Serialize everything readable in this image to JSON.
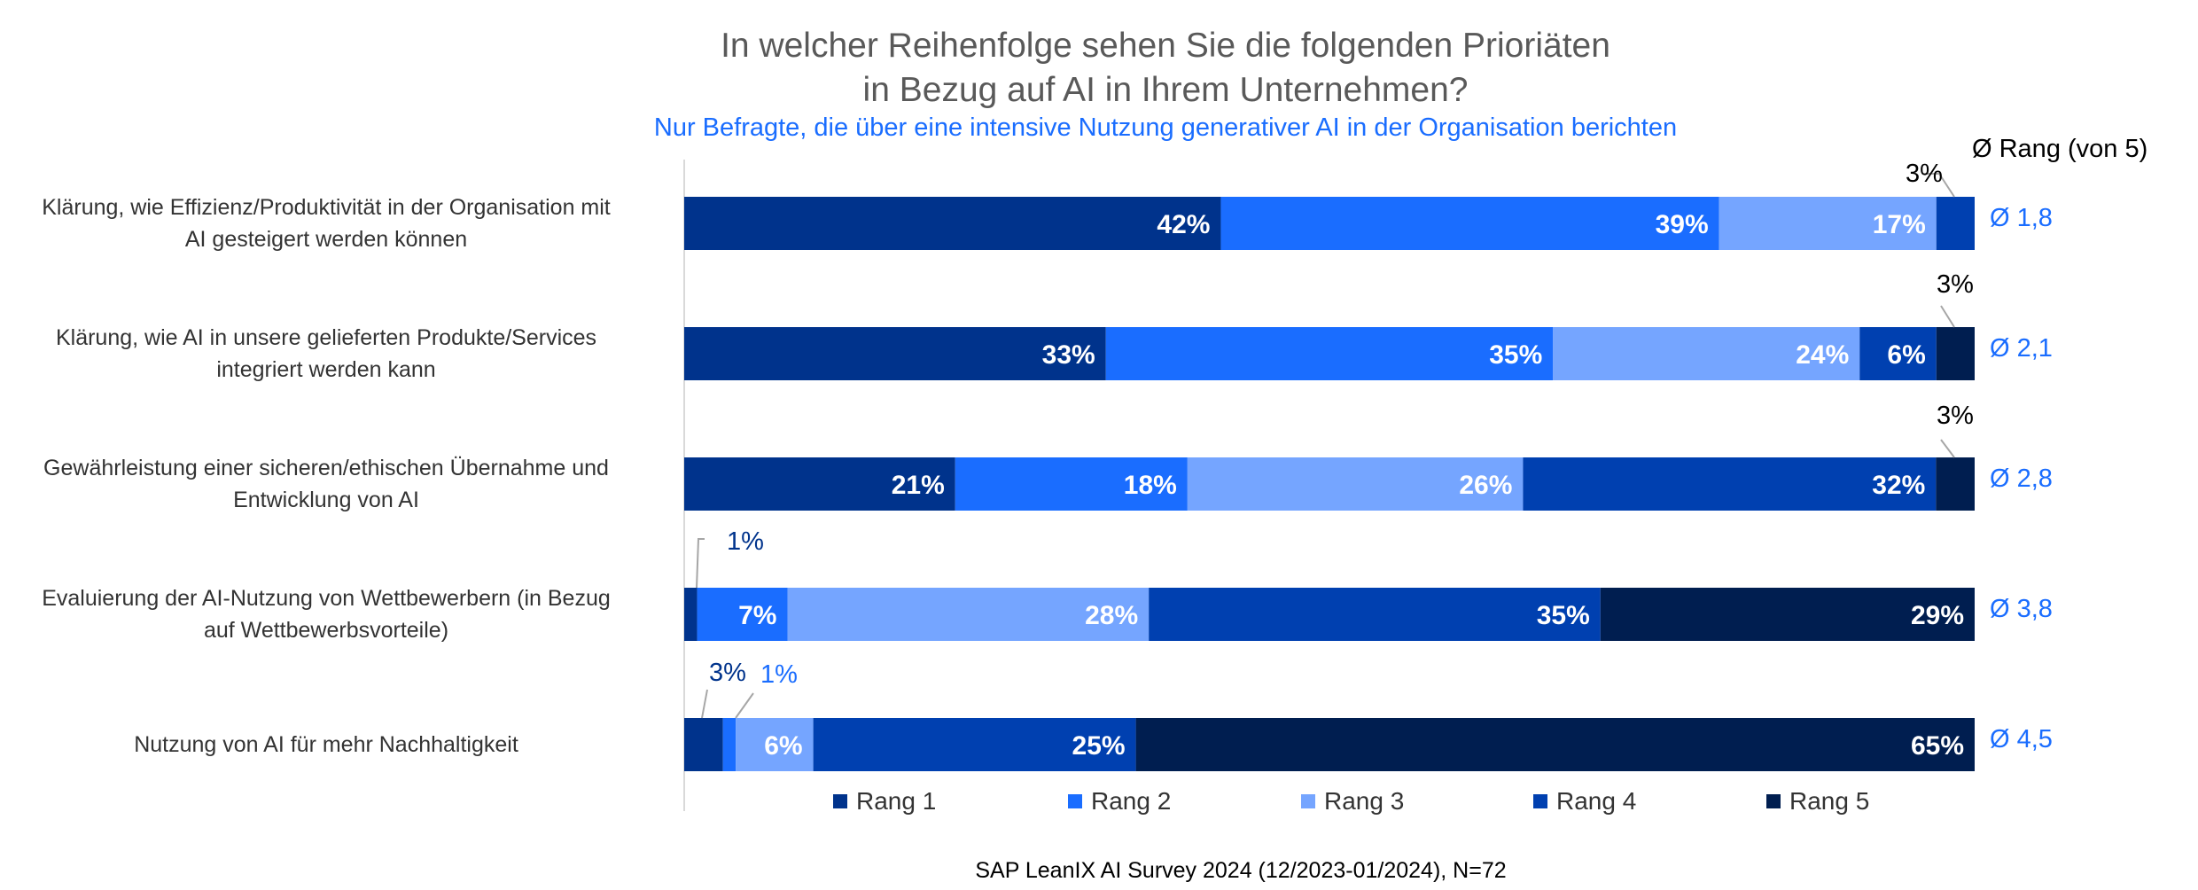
{
  "chart_data": {
    "type": "bar",
    "orientation": "horizontal",
    "stacked": true,
    "title": "In welcher Reihenfolge sehen Sie die folgenden Prioriäten in Bezug auf AI in Ihrem Unternehmen?",
    "title_lines": [
      "In welcher Reihenfolge sehen Sie die folgenden Prioriäten",
      "in Bezug auf AI in Ihrem Unternehmen?"
    ],
    "subtitle": "Nur Befragte, die über eine intensive Nutzung generativer AI in der Organisation berichten",
    "categories": [
      [
        "Klärung, wie Effizienz/Produktivität in der Organisation mit",
        "AI gesteigert werden können"
      ],
      [
        "Klärung, wie AI in unsere gelieferten Produkte/Services",
        "integriert werden kann"
      ],
      [
        "Gewährleistung einer sicheren/ethischen Übernahme und",
        "Entwicklung von AI"
      ],
      [
        "Evaluierung der AI-Nutzung von Wettbewerbern (in Bezug",
        "auf Wettbewerbsvorteile)"
      ],
      [
        "Nutzung von AI für mehr Nachhaltigkeit"
      ]
    ],
    "series": [
      {
        "name": "Rang 1",
        "color": "#00338c",
        "values": [
          42,
          33,
          21,
          1,
          3
        ]
      },
      {
        "name": "Rang 2",
        "color": "#1a6dff",
        "values": [
          39,
          35,
          18,
          7,
          1
        ]
      },
      {
        "name": "Rang 3",
        "color": "#75a5ff",
        "values": [
          17,
          24,
          26,
          28,
          6
        ]
      },
      {
        "name": "Rang 4",
        "color": "#0040b0",
        "values": [
          3,
          6,
          32,
          35,
          25
        ]
      },
      {
        "name": "Rang 5",
        "color": "#001e50",
        "values": [
          0,
          3,
          3,
          29,
          65
        ]
      }
    ],
    "unit": "%",
    "avg_header": "Ø Rang (von 5)",
    "avg_labels": [
      "Ø 1,8",
      "Ø 2,1",
      "Ø 2,8",
      "Ø 3,8",
      "Ø 4,5"
    ],
    "legend_position": "bottom",
    "grid": false
  },
  "source": "SAP LeanIX AI Survey 2024 (12/2023-01/2024), N=72"
}
